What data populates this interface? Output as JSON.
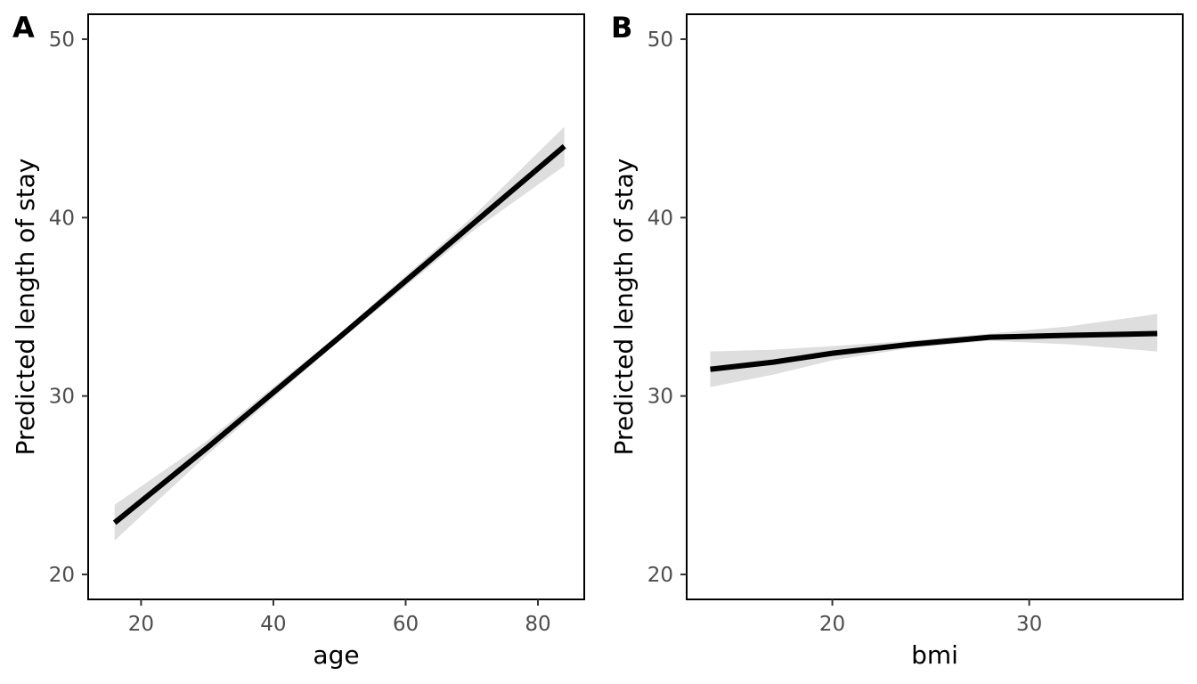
{
  "chart_data": [
    {
      "type": "line",
      "panel_label": "A",
      "xlabel": "age",
      "ylabel": "Predicted length of stay",
      "xlim": [
        12,
        87
      ],
      "ylim": [
        18.6,
        51.4
      ],
      "xticks": [
        20,
        40,
        60,
        80
      ],
      "yticks": [
        20,
        30,
        40,
        50
      ],
      "grid": false,
      "legend": "none",
      "series": [
        {
          "line_color": "#000000",
          "ribbon_color": "#dedede",
          "x": [
            16,
            30,
            50,
            70,
            84
          ],
          "y": [
            22.9,
            27.1,
            33.3,
            39.6,
            44.0
          ],
          "lower": [
            21.9,
            26.7,
            33.1,
            39.2,
            42.9
          ],
          "upper": [
            23.9,
            27.5,
            33.5,
            40.0,
            45.1
          ]
        }
      ]
    },
    {
      "type": "line",
      "panel_label": "B",
      "xlabel": "bmi",
      "ylabel": "Predicted length of stay",
      "xlim": [
        12.6,
        37.8
      ],
      "ylim": [
        18.6,
        51.4
      ],
      "xticks": [
        20,
        30
      ],
      "yticks": [
        20,
        30,
        40,
        50
      ],
      "grid": false,
      "legend": "none",
      "series": [
        {
          "line_color": "#000000",
          "ribbon_color": "#dedede",
          "x": [
            13.8,
            17,
            20,
            24,
            28,
            32,
            36.5
          ],
          "y": [
            31.5,
            31.9,
            32.4,
            32.9,
            33.3,
            33.4,
            33.5
          ],
          "lower": [
            30.5,
            31.2,
            32.0,
            32.7,
            33.1,
            32.9,
            32.5
          ],
          "upper": [
            32.5,
            32.6,
            32.8,
            33.1,
            33.5,
            33.9,
            34.6
          ]
        }
      ]
    }
  ]
}
